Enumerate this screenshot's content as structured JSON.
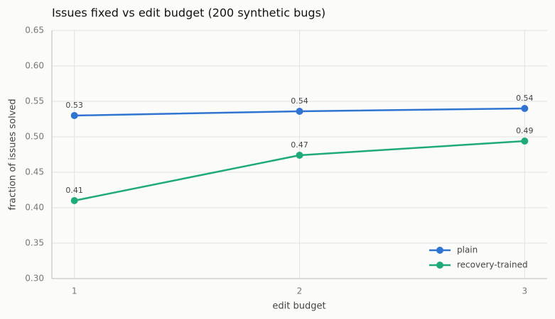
{
  "chart_data": {
    "type": "line",
    "title": "Issues fixed vs edit budget (200 synthetic bugs)",
    "x_label": "edit budget",
    "y_label": "fraction of issues solved",
    "x": [
      1,
      2,
      3
    ],
    "series": [
      {
        "name": "plain",
        "color": "#2f74d0",
        "values": [
          0.53,
          0.536,
          0.54
        ],
        "value_labels": [
          "0.53",
          "0.54",
          "0.54"
        ]
      },
      {
        "name": "recovery-trained",
        "color": "#1faa7a",
        "values": [
          0.41,
          0.474,
          0.494
        ],
        "value_labels": [
          "0.41",
          "0.47",
          "0.49"
        ]
      }
    ],
    "xlim": [
      0.9,
      3.1
    ],
    "xticks": [
      1,
      2,
      3
    ],
    "ylim": [
      0.3,
      0.65
    ],
    "yticks": [
      {
        "value": 0.3,
        "label": "0.30"
      },
      0.35,
      {
        "value": 0.4,
        "label": "0.40"
      },
      0.45,
      {
        "value": 0.5,
        "label": "0.50"
      },
      0.55,
      {
        "value": 0.6,
        "label": "0.60"
      },
      0.65
    ],
    "grid": true,
    "legend": "lower right"
  }
}
